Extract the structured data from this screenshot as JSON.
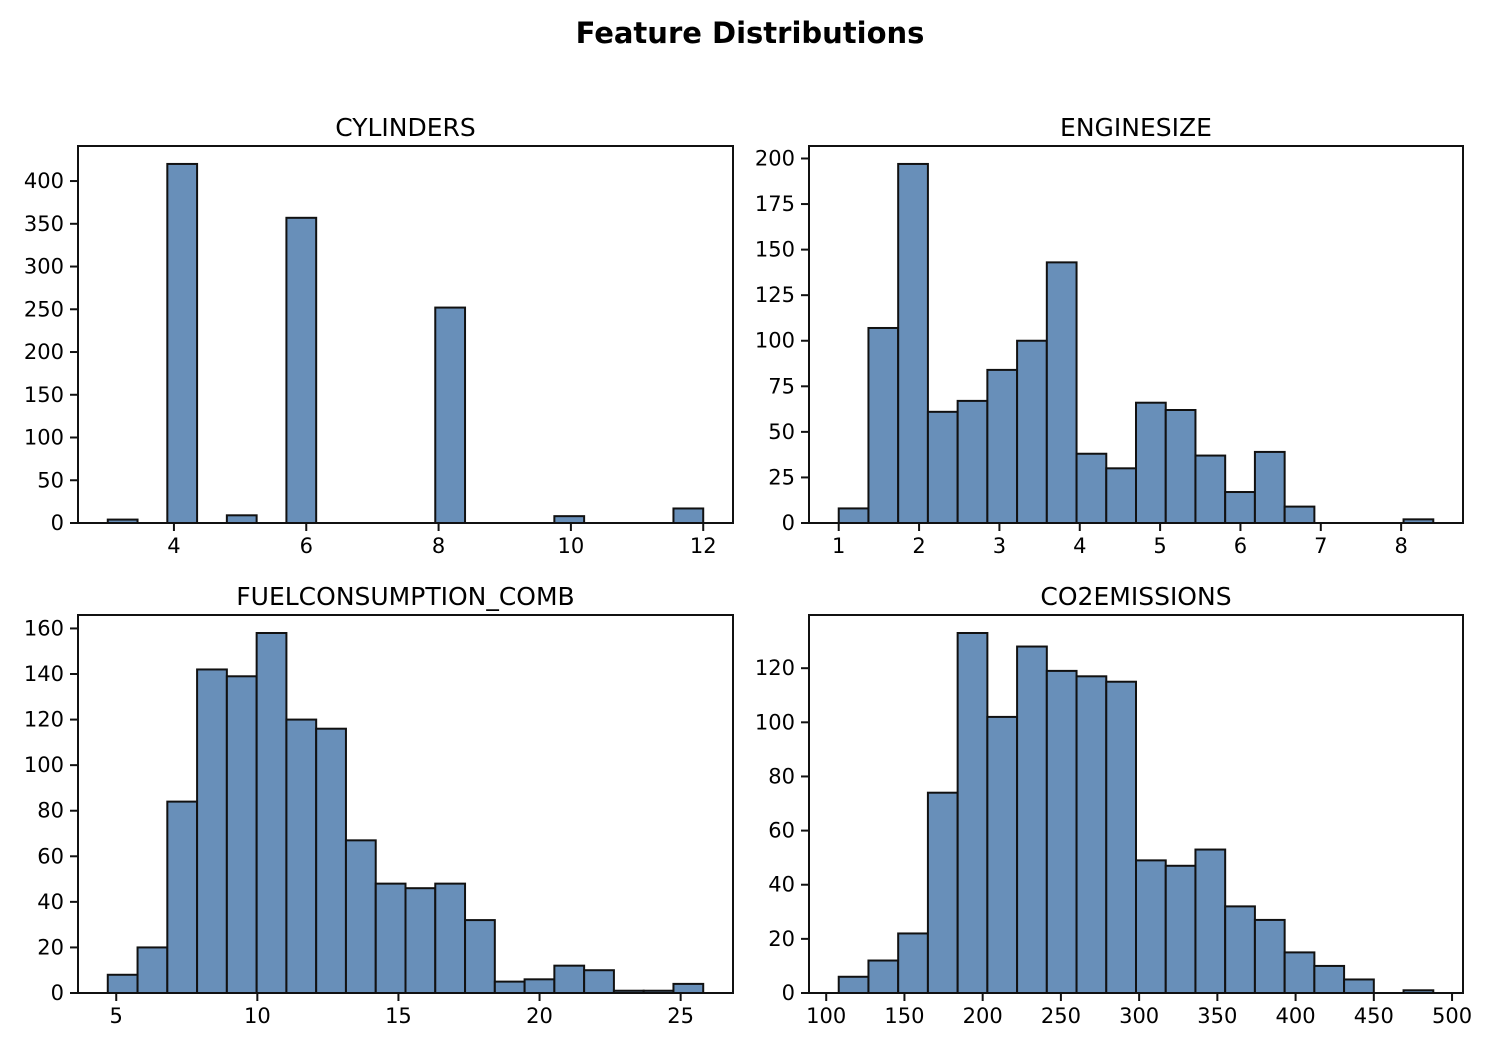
{
  "figure": {
    "suptitle": "Feature Distributions",
    "background": "#ffffff",
    "bar_fill": "#688fb9",
    "bar_edge": "#111111",
    "axis_color": "#111111",
    "text_color": "#000000",
    "layout": "2x2-grid"
  },
  "chart_data": [
    {
      "type": "bar",
      "subtype": "histogram",
      "title": "CYLINDERS",
      "xlabel": "",
      "ylabel": "",
      "bin_start": 3.0,
      "bin_width": 0.45,
      "counts": [
        4,
        0,
        420,
        0,
        9,
        0,
        357,
        0,
        0,
        0,
        0,
        252,
        0,
        0,
        0,
        8,
        0,
        0,
        0,
        17
      ],
      "xlim": [
        2.55,
        12.45
      ],
      "ylim": [
        0,
        441
      ],
      "xticks": [
        4,
        6,
        8,
        10,
        12
      ],
      "yticks": [
        0,
        50,
        100,
        150,
        200,
        250,
        300,
        350,
        400
      ],
      "grid": false,
      "legend": "none"
    },
    {
      "type": "bar",
      "subtype": "histogram",
      "title": "ENGINESIZE",
      "xlabel": "",
      "ylabel": "",
      "bin_start": 1.0,
      "bin_width": 0.37,
      "counts": [
        8,
        107,
        197,
        61,
        67,
        84,
        100,
        143,
        38,
        30,
        66,
        62,
        37,
        17,
        39,
        9,
        0,
        0,
        0,
        2
      ],
      "xlim": [
        0.63,
        8.77
      ],
      "ylim": [
        0,
        206.85
      ],
      "xticks": [
        1,
        2,
        3,
        4,
        5,
        6,
        7,
        8
      ],
      "yticks": [
        0,
        25,
        50,
        75,
        100,
        125,
        150,
        175,
        200
      ],
      "grid": false,
      "legend": "none"
    },
    {
      "type": "bar",
      "subtype": "histogram",
      "title": "FUELCONSUMPTION_COMB",
      "xlabel": "",
      "ylabel": "",
      "bin_start": 4.7,
      "bin_width": 1.055,
      "counts": [
        8,
        20,
        84,
        142,
        139,
        158,
        120,
        116,
        67,
        48,
        46,
        48,
        32,
        5,
        6,
        12,
        10,
        1,
        1,
        4
      ],
      "xlim": [
        3.645,
        26.855
      ],
      "ylim": [
        0,
        165.9
      ],
      "xticks": [
        5,
        10,
        15,
        20,
        25
      ],
      "yticks": [
        0,
        20,
        40,
        60,
        80,
        100,
        120,
        140,
        160
      ],
      "grid": false,
      "legend": "none"
    },
    {
      "type": "bar",
      "subtype": "histogram",
      "title": "CO2EMISSIONS",
      "xlabel": "",
      "ylabel": "",
      "bin_start": 108,
      "bin_width": 19,
      "counts": [
        6,
        12,
        22,
        74,
        133,
        102,
        128,
        119,
        117,
        115,
        49,
        47,
        53,
        32,
        27,
        15,
        10,
        5,
        0,
        1
      ],
      "xlim": [
        89,
        507
      ],
      "ylim": [
        0,
        139.65
      ],
      "xticks": [
        100,
        150,
        200,
        250,
        300,
        350,
        400,
        450,
        500
      ],
      "yticks": [
        0,
        20,
        40,
        60,
        80,
        100,
        120
      ],
      "grid": false,
      "legend": "none"
    }
  ]
}
